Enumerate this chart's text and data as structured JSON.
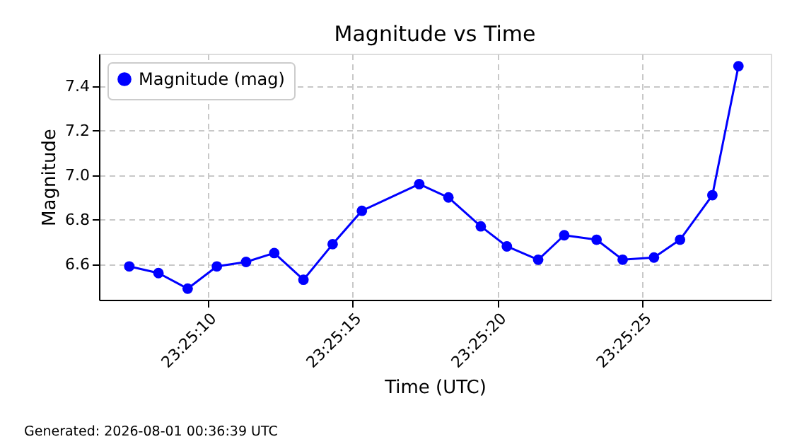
{
  "chart_data": {
    "type": "line",
    "title": "Magnitude vs Time",
    "xlabel": "Time (UTC)",
    "ylabel": "Magnitude",
    "annotations": [
      "Generated: 2026-08-01 00:36:39 UTC"
    ],
    "x": [
      23.41869,
      23.41897,
      23.41925,
      23.41953,
      23.41981,
      23.42008,
      23.42036,
      23.42064,
      23.42092,
      23.42147,
      23.42175,
      23.42206,
      23.42231,
      23.42261,
      23.42286,
      23.42317,
      23.42342,
      23.42372,
      23.42397,
      23.42428,
      23.42453
    ],
    "series": [
      {
        "name": "Magnitude (mag)",
        "color": "#0000ff",
        "values": [
          6.59,
          6.56,
          6.49,
          6.59,
          6.61,
          6.65,
          6.53,
          6.69,
          6.84,
          6.96,
          6.9,
          6.77,
          6.68,
          6.62,
          6.73,
          6.71,
          6.62,
          6.63,
          6.71,
          6.91,
          7.49
        ]
      }
    ],
    "xlim": [
      23.4184,
      23.42484
    ],
    "xticks": [
      {
        "value": 23.41944,
        "label": "23:25:10"
      },
      {
        "value": 23.42083,
        "label": "23:25:15"
      },
      {
        "value": 23.42222,
        "label": "23:25:20"
      },
      {
        "value": 23.42361,
        "label": "23:25:25"
      }
    ],
    "ylim": [
      6.44,
      7.546
    ],
    "yticks": [
      6.6,
      6.8,
      {
        "value": 7,
        "label": "7.0"
      },
      7.2,
      7.4
    ],
    "grid": true,
    "legend": "top left",
    "marker": "circle",
    "line_style": "solid"
  }
}
